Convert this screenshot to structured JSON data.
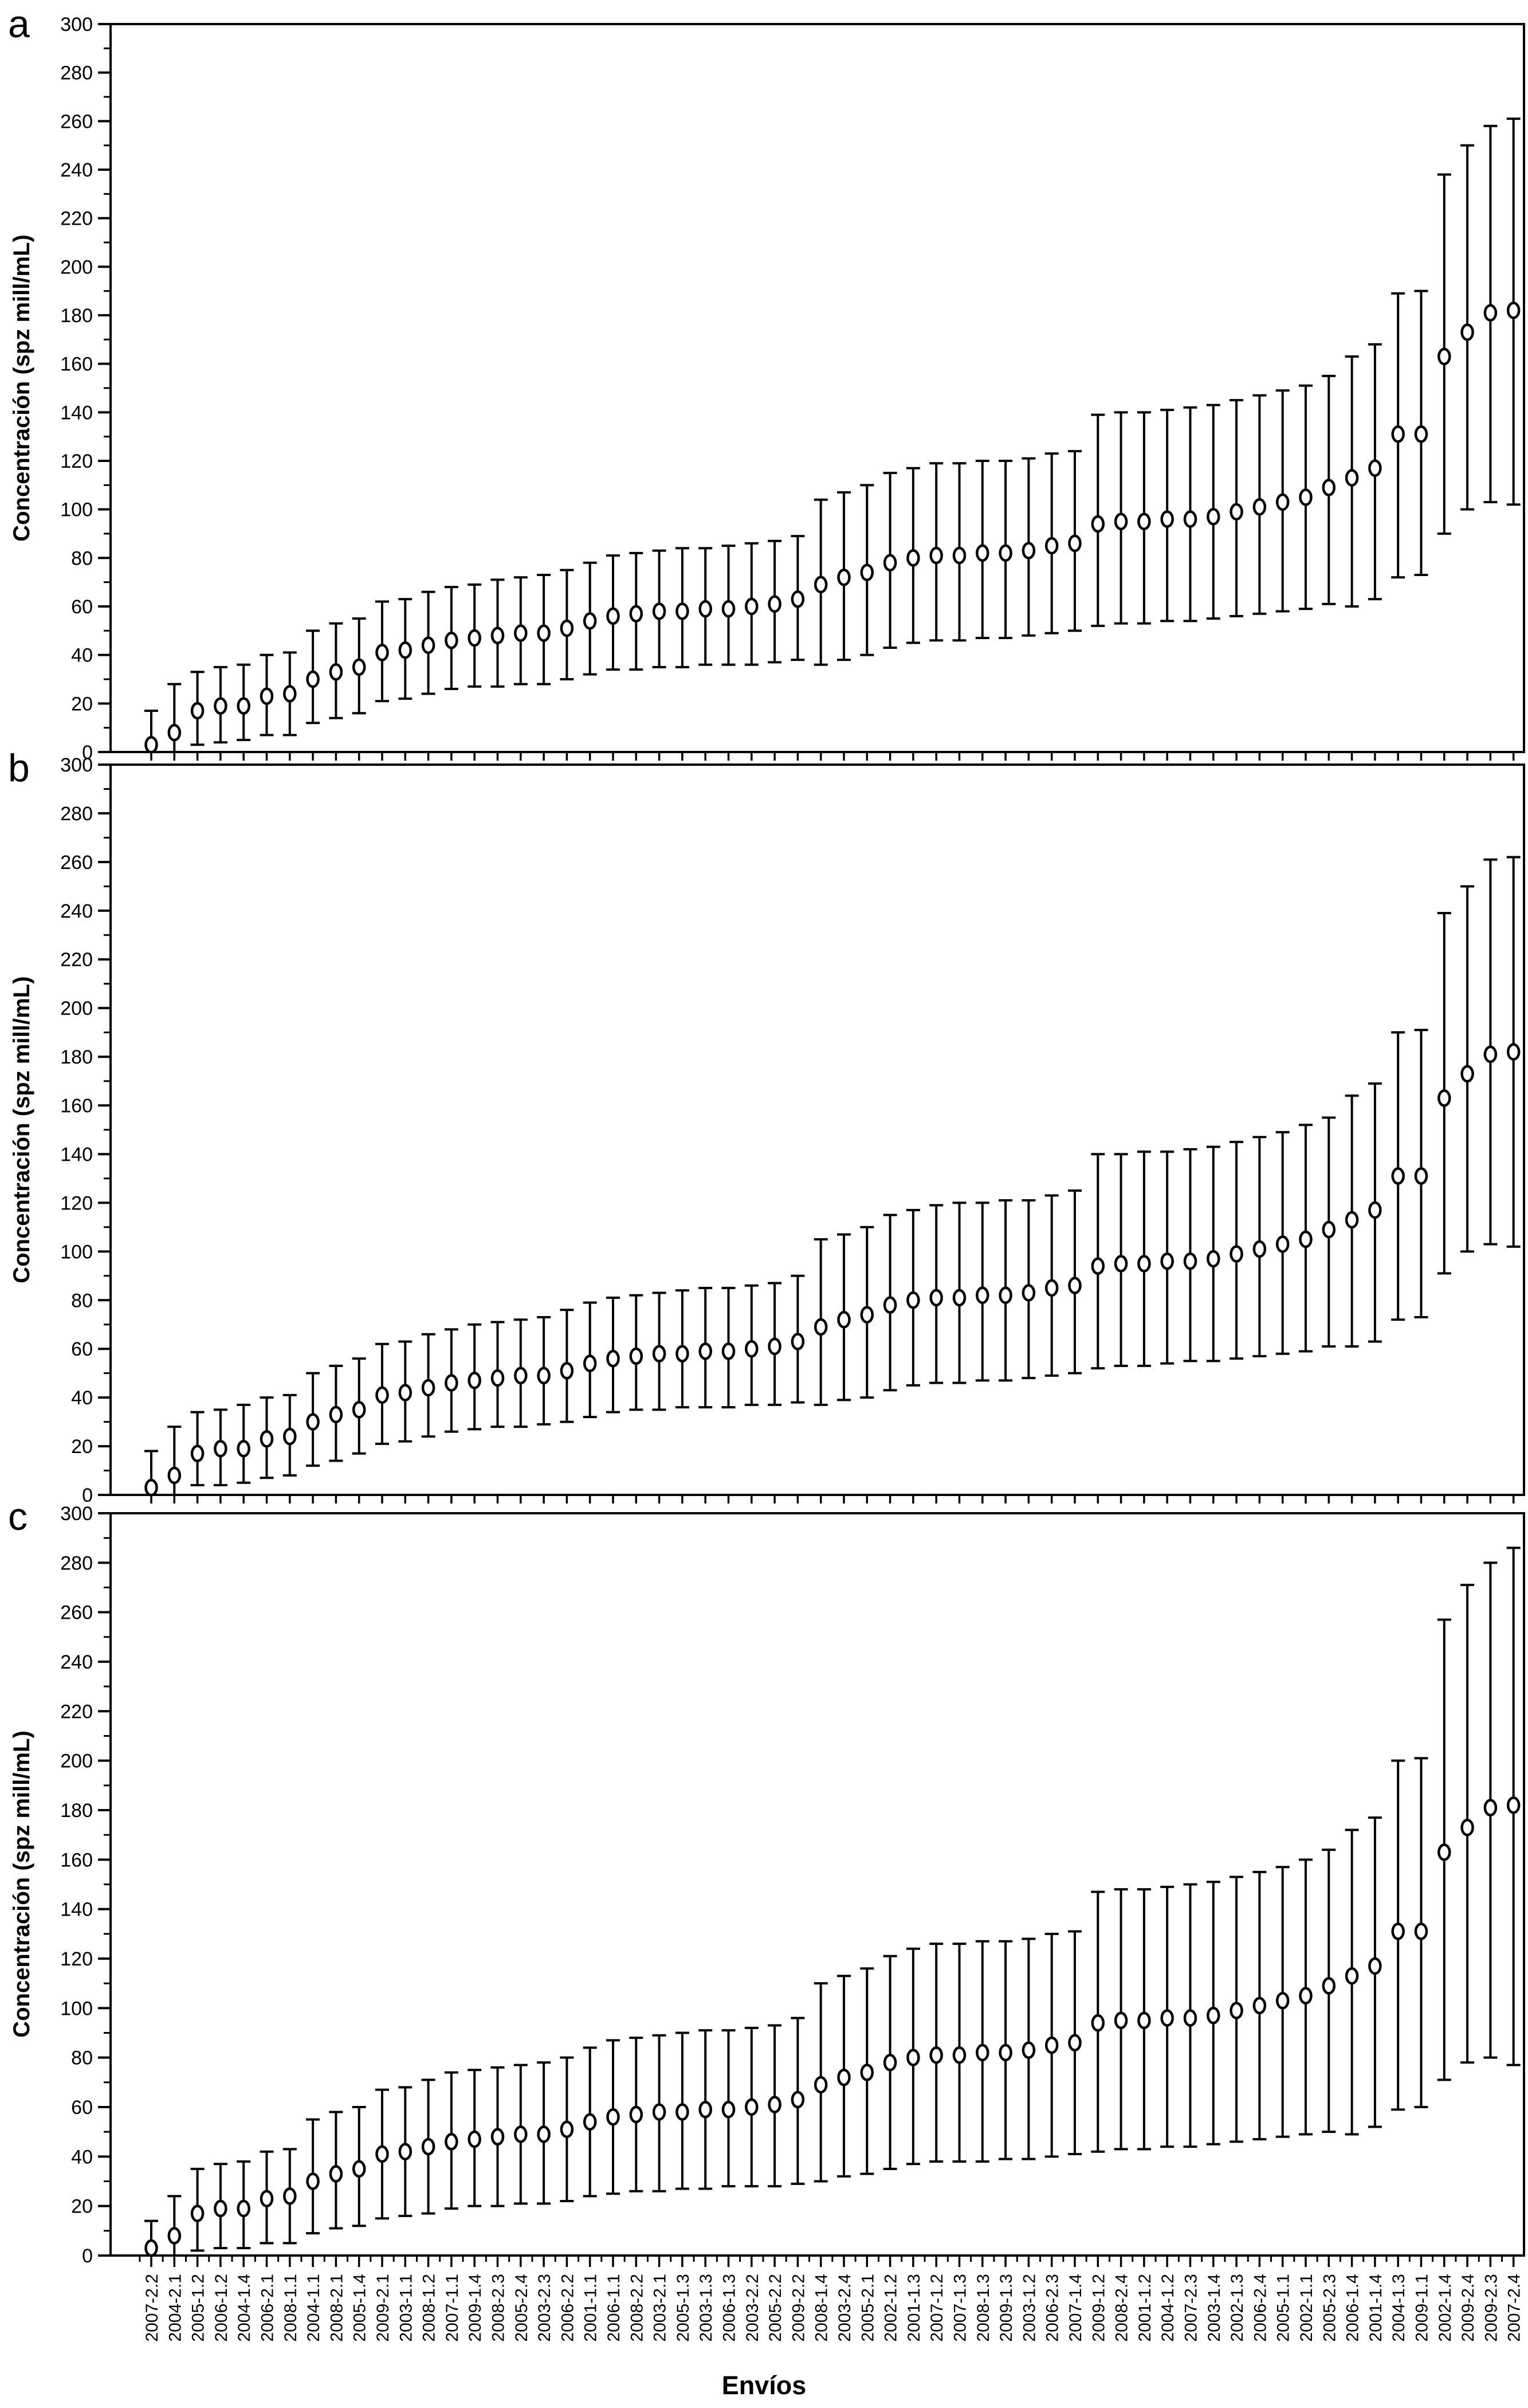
{
  "figure": {
    "panel_labels": [
      "a",
      "b",
      "c"
    ],
    "ylabel": "Concentración (spz mill/mL)",
    "xlabel": "Envíos",
    "background_color": "#ffffff",
    "stroke_color": "#000000"
  },
  "chart_data": [
    {
      "panel": "a",
      "type": "scatter",
      "marker": "open-circle",
      "error_bars": true,
      "legend": "none",
      "grid": false,
      "xlabel": "",
      "ylabel": "Concentración (spz mill/mL)",
      "ylim": [
        0,
        300
      ],
      "y_ticks": [
        0,
        20,
        40,
        60,
        80,
        100,
        120,
        140,
        160,
        180,
        200,
        220,
        240,
        260,
        280,
        300
      ],
      "y_minor_step": 10,
      "x_tick_labels_shown": false,
      "categories": [
        "2007-2.2",
        "2004-2.1",
        "2005-1.2",
        "2006-1.2",
        "2004-1.4",
        "2006-2.1",
        "2008-1.1",
        "2004-1.1",
        "2008-2.1",
        "2005-1.4",
        "2009-2.1",
        "2003-1.1",
        "2008-1.2",
        "2007-1.1",
        "2009-1.4",
        "2008-2.3",
        "2005-2.4",
        "2003-2.3",
        "2006-2.2",
        "2001-1.1",
        "2006-1.1",
        "2008-2.2",
        "2003-2.1",
        "2005-1.3",
        "2003-1.3",
        "2006-1.3",
        "2003-2.2",
        "2005-2.2",
        "2009-2.2",
        "2008-1.4",
        "2003-2.4",
        "2005-2.1",
        "2002-1.2",
        "2001-1.3",
        "2007-1.2",
        "2007-1.3",
        "2008-1.3",
        "2009-1.3",
        "2003-1.2",
        "2006-2.3",
        "2007-1.4",
        "2009-1.2",
        "2008-2.4",
        "2001-1.2",
        "2004-1.2",
        "2007-2.3",
        "2003-1.4",
        "2002-1.3",
        "2006-2.4",
        "2005-1.1",
        "2002-1.1",
        "2005-2.3",
        "2006-1.4",
        "2001-1.4",
        "2004-1.3",
        "2009-1.1",
        "2002-1.4",
        "2009-2.4",
        "2009-2.3",
        "2007-2.4"
      ],
      "series": [
        {
          "name": "concentración media con intervalo",
          "means": [
            3,
            8,
            17,
            19,
            19,
            23,
            24,
            30,
            33,
            35,
            41,
            42,
            44,
            46,
            47,
            48,
            49,
            49,
            51,
            54,
            56,
            57,
            58,
            58,
            59,
            59,
            60,
            61,
            63,
            69,
            72,
            74,
            78,
            80,
            81,
            81,
            82,
            82,
            83,
            85,
            86,
            94,
            95,
            95,
            96,
            96,
            97,
            99,
            101,
            103,
            105,
            109,
            113,
            117,
            131,
            131,
            163,
            173,
            181,
            182
          ],
          "lower": [
            0,
            0,
            3,
            4,
            5,
            7,
            7,
            12,
            14,
            16,
            21,
            22,
            24,
            26,
            27,
            27,
            28,
            28,
            30,
            32,
            34,
            34,
            35,
            35,
            36,
            36,
            36,
            37,
            38,
            36,
            38,
            40,
            43,
            45,
            46,
            46,
            47,
            47,
            48,
            49,
            50,
            52,
            53,
            53,
            54,
            54,
            55,
            56,
            57,
            58,
            59,
            61,
            60,
            63,
            72,
            73,
            90,
            100,
            103,
            102
          ],
          "upper": [
            17,
            28,
            33,
            35,
            36,
            40,
            41,
            50,
            53,
            55,
            62,
            63,
            66,
            68,
            69,
            71,
            72,
            73,
            75,
            78,
            81,
            82,
            83,
            84,
            84,
            85,
            86,
            87,
            89,
            104,
            107,
            110,
            115,
            117,
            119,
            119,
            120,
            120,
            121,
            123,
            124,
            139,
            140,
            140,
            141,
            142,
            143,
            145,
            147,
            149,
            151,
            155,
            163,
            168,
            189,
            190,
            238,
            250,
            258,
            261
          ]
        }
      ]
    },
    {
      "panel": "b",
      "type": "scatter",
      "marker": "open-circle",
      "error_bars": true,
      "legend": "none",
      "grid": false,
      "xlabel": "",
      "ylabel": "Concentración (spz mill/mL)",
      "ylim": [
        0,
        300
      ],
      "y_ticks": [
        0,
        20,
        40,
        60,
        80,
        100,
        120,
        140,
        160,
        180,
        200,
        220,
        240,
        260,
        280,
        300
      ],
      "y_minor_step": 10,
      "x_tick_labels_shown": false,
      "categories": [
        "2007-2.2",
        "2004-2.1",
        "2005-1.2",
        "2006-1.2",
        "2004-1.4",
        "2006-2.1",
        "2008-1.1",
        "2004-1.1",
        "2008-2.1",
        "2005-1.4",
        "2009-2.1",
        "2003-1.1",
        "2008-1.2",
        "2007-1.1",
        "2009-1.4",
        "2008-2.3",
        "2005-2.4",
        "2003-2.3",
        "2006-2.2",
        "2001-1.1",
        "2006-1.1",
        "2008-2.2",
        "2003-2.1",
        "2005-1.3",
        "2003-1.3",
        "2006-1.3",
        "2003-2.2",
        "2005-2.2",
        "2009-2.2",
        "2008-1.4",
        "2003-2.4",
        "2005-2.1",
        "2002-1.2",
        "2001-1.3",
        "2007-1.2",
        "2007-1.3",
        "2008-1.3",
        "2009-1.3",
        "2003-1.2",
        "2006-2.3",
        "2007-1.4",
        "2009-1.2",
        "2008-2.4",
        "2001-1.2",
        "2004-1.2",
        "2007-2.3",
        "2003-1.4",
        "2002-1.3",
        "2006-2.4",
        "2005-1.1",
        "2002-1.1",
        "2005-2.3",
        "2006-1.4",
        "2001-1.4",
        "2004-1.3",
        "2009-1.1",
        "2002-1.4",
        "2009-2.4",
        "2009-2.3",
        "2007-2.4"
      ],
      "series": [
        {
          "name": "concentración media con intervalo",
          "means": [
            3,
            8,
            17,
            19,
            19,
            23,
            24,
            30,
            33,
            35,
            41,
            42,
            44,
            46,
            47,
            48,
            49,
            49,
            51,
            54,
            56,
            57,
            58,
            58,
            59,
            59,
            60,
            61,
            63,
            69,
            72,
            74,
            78,
            80,
            81,
            81,
            82,
            82,
            83,
            85,
            86,
            94,
            95,
            95,
            96,
            96,
            97,
            99,
            101,
            103,
            105,
            109,
            113,
            117,
            131,
            131,
            163,
            173,
            181,
            182
          ],
          "lower": [
            0,
            0,
            4,
            4,
            5,
            7,
            8,
            12,
            14,
            17,
            21,
            22,
            24,
            26,
            27,
            28,
            28,
            29,
            30,
            32,
            34,
            35,
            35,
            36,
            36,
            36,
            37,
            37,
            38,
            37,
            39,
            40,
            43,
            45,
            46,
            46,
            47,
            47,
            48,
            49,
            50,
            52,
            53,
            53,
            54,
            55,
            55,
            56,
            57,
            58,
            59,
            61,
            61,
            63,
            72,
            73,
            91,
            100,
            103,
            102
          ],
          "upper": [
            18,
            28,
            34,
            35,
            37,
            40,
            41,
            50,
            53,
            56,
            62,
            63,
            66,
            68,
            70,
            71,
            72,
            73,
            76,
            79,
            81,
            82,
            83,
            84,
            85,
            85,
            86,
            87,
            90,
            105,
            107,
            110,
            115,
            117,
            119,
            120,
            120,
            121,
            121,
            123,
            125,
            140,
            140,
            141,
            141,
            142,
            143,
            145,
            147,
            149,
            152,
            155,
            164,
            169,
            190,
            191,
            239,
            250,
            261,
            262
          ]
        }
      ]
    },
    {
      "panel": "c",
      "type": "scatter",
      "marker": "open-circle",
      "error_bars": true,
      "legend": "none",
      "grid": false,
      "xlabel": "Envíos",
      "ylabel": "Concentración (spz mill/mL)",
      "ylim": [
        0,
        300
      ],
      "y_ticks": [
        0,
        20,
        40,
        60,
        80,
        100,
        120,
        140,
        160,
        180,
        200,
        220,
        240,
        260,
        280,
        300
      ],
      "y_minor_step": 10,
      "x_tick_labels_shown": true,
      "categories": [
        "2007-2.2",
        "2004-2.1",
        "2005-1.2",
        "2006-1.2",
        "2004-1.4",
        "2006-2.1",
        "2008-1.1",
        "2004-1.1",
        "2008-2.1",
        "2005-1.4",
        "2009-2.1",
        "2003-1.1",
        "2008-1.2",
        "2007-1.1",
        "2009-1.4",
        "2008-2.3",
        "2005-2.4",
        "2003-2.3",
        "2006-2.2",
        "2001-1.1",
        "2006-1.1",
        "2008-2.2",
        "2003-2.1",
        "2005-1.3",
        "2003-1.3",
        "2006-1.3",
        "2003-2.2",
        "2005-2.2",
        "2009-2.2",
        "2008-1.4",
        "2003-2.4",
        "2005-2.1",
        "2002-1.2",
        "2001-1.3",
        "2007-1.2",
        "2007-1.3",
        "2008-1.3",
        "2009-1.3",
        "2003-1.2",
        "2006-2.3",
        "2007-1.4",
        "2009-1.2",
        "2008-2.4",
        "2001-1.2",
        "2004-1.2",
        "2007-2.3",
        "2003-1.4",
        "2002-1.3",
        "2006-2.4",
        "2005-1.1",
        "2002-1.1",
        "2005-2.3",
        "2006-1.4",
        "2001-1.4",
        "2004-1.3",
        "2009-1.1",
        "2002-1.4",
        "2009-2.4",
        "2009-2.3",
        "2007-2.4"
      ],
      "series": [
        {
          "name": "concentración media con intervalo",
          "means": [
            3,
            8,
            17,
            19,
            19,
            23,
            24,
            30,
            33,
            35,
            41,
            42,
            44,
            46,
            47,
            48,
            49,
            49,
            51,
            54,
            56,
            57,
            58,
            58,
            59,
            59,
            60,
            61,
            63,
            69,
            72,
            74,
            78,
            80,
            81,
            81,
            82,
            82,
            83,
            85,
            86,
            94,
            95,
            95,
            96,
            96,
            97,
            99,
            101,
            103,
            105,
            109,
            113,
            117,
            131,
            131,
            163,
            173,
            181,
            182
          ],
          "lower": [
            0,
            0,
            2,
            3,
            3,
            5,
            5,
            9,
            11,
            12,
            15,
            16,
            17,
            19,
            20,
            20,
            21,
            21,
            22,
            24,
            25,
            26,
            26,
            27,
            27,
            28,
            28,
            28,
            29,
            30,
            32,
            33,
            35,
            37,
            38,
            38,
            38,
            39,
            39,
            40,
            41,
            42,
            43,
            43,
            44,
            44,
            45,
            46,
            47,
            48,
            49,
            50,
            49,
            52,
            59,
            60,
            71,
            78,
            80,
            77
          ],
          "upper": [
            14,
            24,
            35,
            37,
            38,
            42,
            43,
            55,
            58,
            60,
            67,
            68,
            71,
            74,
            75,
            76,
            77,
            78,
            80,
            84,
            87,
            88,
            89,
            90,
            91,
            91,
            92,
            93,
            96,
            110,
            113,
            116,
            121,
            124,
            126,
            126,
            127,
            127,
            128,
            130,
            131,
            147,
            148,
            148,
            149,
            150,
            151,
            153,
            155,
            157,
            160,
            164,
            172,
            177,
            200,
            201,
            257,
            271,
            280,
            286
          ]
        }
      ]
    }
  ]
}
